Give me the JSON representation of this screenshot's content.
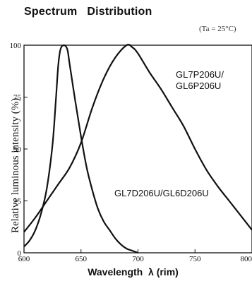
{
  "figure": {
    "title": "Spectrum   Distribution",
    "condition": "(Ta = 25°C)",
    "xlabel": "Wavelength  λ (rim)",
    "ylabel": "Relative luminous intensity (%)"
  },
  "chart_data": {
    "type": "line",
    "title": "Spectrum   Distribution",
    "xlabel": "Wavelength  λ (rim)",
    "ylabel": "Relative luminous intensity (%)",
    "xlim": [
      600,
      800
    ],
    "ylim": [
      0,
      100
    ],
    "xticks": [
      "600",
      "650",
      "700",
      "750",
      "800"
    ],
    "yticks": [
      "0",
      "25",
      "50",
      "75",
      "100"
    ],
    "grid": false,
    "series": [
      {
        "name": "GL7D206U/GL6D206U",
        "points": [
          [
            600,
            3
          ],
          [
            605,
            6
          ],
          [
            610,
            11
          ],
          [
            615,
            19
          ],
          [
            620,
            31
          ],
          [
            625,
            52
          ],
          [
            628,
            74
          ],
          [
            630,
            90
          ],
          [
            632,
            98
          ],
          [
            635,
            100
          ],
          [
            638,
            98
          ],
          [
            640,
            91
          ],
          [
            645,
            73
          ],
          [
            650,
            56
          ],
          [
            655,
            41
          ],
          [
            660,
            30
          ],
          [
            665,
            21
          ],
          [
            670,
            15
          ],
          [
            675,
            11
          ],
          [
            680,
            7
          ],
          [
            685,
            4
          ],
          [
            690,
            2
          ],
          [
            695,
            1
          ],
          [
            700,
            0
          ]
        ]
      },
      {
        "name": "GL7P206U/\nGL6P206U",
        "points": [
          [
            600,
            10
          ],
          [
            610,
            17
          ],
          [
            620,
            25
          ],
          [
            630,
            33
          ],
          [
            640,
            41
          ],
          [
            650,
            53
          ],
          [
            660,
            70
          ],
          [
            670,
            84
          ],
          [
            680,
            94
          ],
          [
            690,
            100
          ],
          [
            695,
            99
          ],
          [
            700,
            96
          ],
          [
            710,
            87
          ],
          [
            720,
            79
          ],
          [
            730,
            70
          ],
          [
            740,
            61
          ],
          [
            750,
            50
          ],
          [
            760,
            40
          ],
          [
            770,
            32
          ],
          [
            780,
            25
          ],
          [
            790,
            18
          ],
          [
            800,
            11
          ]
        ]
      }
    ]
  }
}
